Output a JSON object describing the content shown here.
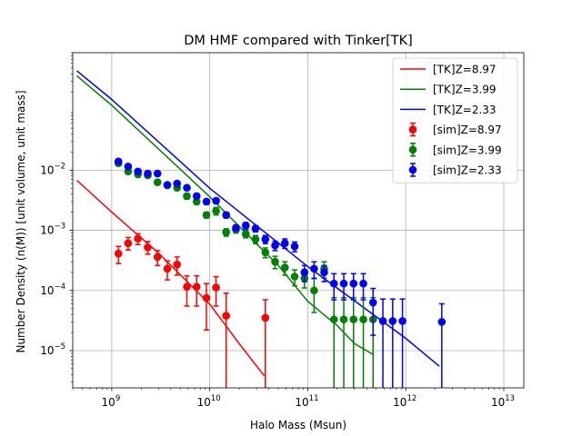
{
  "chart_data": {
    "type": "scatter",
    "title": "DM HMF compared with Tinker[TK]",
    "xlabel": "Halo Mass (Msun)",
    "ylabel": "Number Density (n(M)) [unit volume, unit mass]",
    "xscale": "log",
    "yscale": "log",
    "xlim": [
      400000000.0,
      16000000000000.0
    ],
    "ylim": [
      2.4e-06,
      0.9
    ],
    "grid": true,
    "legend_position": "top-right",
    "x_ticks": [
      {
        "base": "10",
        "exp": "9",
        "value": 1000000000.0
      },
      {
        "base": "10",
        "exp": "10",
        "value": 10000000000.0
      },
      {
        "base": "10",
        "exp": "11",
        "value": 100000000000.0
      },
      {
        "base": "10",
        "exp": "12",
        "value": 1000000000000.0
      },
      {
        "base": "10",
        "exp": "13",
        "value": 10000000000000.0
      }
    ],
    "y_ticks": [
      {
        "base": "10",
        "exp": "−5",
        "value": 1e-05
      },
      {
        "base": "10",
        "exp": "−4",
        "value": 0.0001
      },
      {
        "base": "10",
        "exp": "−3",
        "value": 0.001
      },
      {
        "base": "10",
        "exp": "−2",
        "value": 0.01
      }
    ],
    "lines": [
      {
        "name": "[TK]Z=8.97",
        "color": "#ff0000",
        "x": [
          440000000.0,
          1000000000.0,
          3000000000.0,
          10000000000.0,
          20000000000.0,
          36000000000.0
        ],
        "y": [
          0.0068,
          0.002,
          0.00042,
          5.9e-05,
          1.3e-05,
          3.8e-06
        ]
      },
      {
        "name": "[TK]Z=3.99",
        "color": "#008000",
        "x": [
          440000000.0,
          1000000000.0,
          10000000000.0,
          50000000000.0,
          100000000000.0,
          200000000000.0,
          300000000000.0,
          470000000000.0
        ],
        "y": [
          0.37,
          0.12,
          0.0036,
          0.00026,
          6.6e-05,
          2.6e-05,
          1.3e-05,
          8.5e-06
        ]
      },
      {
        "name": "[TK]Z=2.33",
        "color": "#0000ff",
        "x": [
          440000000.0,
          1000000000.0,
          10000000000.0,
          100000000000.0,
          1000000000000.0,
          2200000000000.0
        ],
        "y": [
          0.45,
          0.15,
          0.005,
          0.00025,
          1.6e-05,
          5.5e-06
        ]
      }
    ],
    "points": [
      {
        "name": "[sim]Z=8.97",
        "color": "#ff0000",
        "x": [
          1170000000.0,
          1470000000.0,
          1850000000.0,
          2330000000.0,
          2930000000.0,
          3690000000.0,
          4640000000.0,
          5840000000.0,
          7350000000.0,
          9250000000.0,
          11600000000.0,
          14700000000.0,
          36900000000.0
        ],
        "y": [
          0.00041,
          0.00061,
          0.00073,
          0.00052,
          0.00036,
          0.00023,
          0.00027,
          0.000115,
          0.000115,
          7.5e-05,
          0.000112,
          3.8e-05,
          3.5e-05
        ],
        "lo": [
          0.00028,
          0.00047,
          0.00058,
          0.0004,
          0.00026,
          0.00015,
          0.00018,
          5.5e-05,
          5.5e-05,
          2.2e-05,
          5.5e-05,
          1e-08,
          1e-08
        ],
        "hi": [
          0.00054,
          0.00076,
          0.00088,
          0.00065,
          0.00046,
          0.00031,
          0.00036,
          0.000175,
          0.000175,
          0.00013,
          0.00017,
          9e-05,
          7e-05
        ]
      },
      {
        "name": "[sim]Z=3.99",
        "color": "#008000",
        "x": [
          1170000000.0,
          1470000000.0,
          1850000000.0,
          2330000000.0,
          2930000000.0,
          3690000000.0,
          4640000000.0,
          5840000000.0,
          7350000000.0,
          9250000000.0,
          11600000000.0,
          14700000000.0,
          18500000000.0,
          23300000000.0,
          29300000000.0,
          36900000000.0,
          46400000000.0,
          58400000000.0,
          73500000000.0,
          92500000000.0,
          116000000000.0,
          147000000000.0,
          185000000000.0,
          233000000000.0,
          293000000000.0,
          369000000000.0,
          464000000000.0
        ],
        "y": [
          0.013,
          0.0095,
          0.0085,
          0.0082,
          0.0063,
          0.0056,
          0.0051,
          0.0037,
          0.003,
          0.0018,
          0.0021,
          0.00093,
          0.00103,
          0.00087,
          0.00071,
          0.00043,
          0.0003,
          0.00024,
          0.00017,
          0.00016,
          0.0001,
          0.00023,
          3.3e-05,
          3.3e-05,
          3.3e-05,
          3.3e-05,
          3.3e-05
        ],
        "lo": [
          0.012,
          0.0088,
          0.0078,
          0.0075,
          0.0058,
          0.0051,
          0.0046,
          0.0033,
          0.0027,
          0.0016,
          0.0018,
          0.0008,
          0.0009,
          0.00075,
          0.0006,
          0.00035,
          0.00023,
          0.00018,
          0.00012,
          0.00011,
          4.3e-05,
          0.00016,
          1e-08,
          1e-08,
          1e-08,
          1e-08,
          1e-08
        ],
        "hi": [
          0.014,
          0.0102,
          0.0092,
          0.0089,
          0.0068,
          0.0061,
          0.0056,
          0.0041,
          0.0033,
          0.002,
          0.0024,
          0.00106,
          0.00116,
          0.00099,
          0.00082,
          0.00051,
          0.00037,
          0.0003,
          0.00022,
          0.00021,
          0.000157,
          0.0003,
          7.6e-05,
          7.6e-05,
          7.6e-05,
          7.6e-05,
          7.6e-05
        ]
      },
      {
        "name": "[sim]Z=2.33",
        "color": "#0000ff",
        "x": [
          1170000000.0,
          1470000000.0,
          1850000000.0,
          2330000000.0,
          2930000000.0,
          3690000000.0,
          4640000000.0,
          5840000000.0,
          7350000000.0,
          9250000000.0,
          11600000000.0,
          14700000000.0,
          18500000000.0,
          23300000000.0,
          29300000000.0,
          36900000000.0,
          46400000000.0,
          58400000000.0,
          73500000000.0,
          92500000000.0,
          116000000000.0,
          147000000000.0,
          185000000000.0,
          233000000000.0,
          293000000000.0,
          369000000000.0,
          464000000000.0,
          584000000000.0,
          735000000000.0,
          925000000000.0,
          2330000000000.0
        ],
        "y": [
          0.014,
          0.0115,
          0.0095,
          0.0088,
          0.0088,
          0.0057,
          0.006,
          0.0051,
          0.0037,
          0.003,
          0.0031,
          0.0018,
          0.0011,
          0.0012,
          0.00107,
          0.00071,
          0.00056,
          0.00061,
          0.00054,
          0.0002,
          0.00023,
          0.0002,
          0.00013,
          0.00013,
          0.00013,
          0.00013,
          6.3e-05,
          3.1e-05,
          3.1e-05,
          3.1e-05,
          3e-05
        ],
        "lo": [
          0.013,
          0.0107,
          0.0088,
          0.0081,
          0.0081,
          0.0052,
          0.0055,
          0.0046,
          0.0033,
          0.0027,
          0.0028,
          0.0016,
          0.00097,
          0.00105,
          0.00094,
          0.0006,
          0.00046,
          0.0005,
          0.00044,
          0.00014,
          0.00016,
          0.00014,
          7e-05,
          7e-05,
          7e-05,
          7e-05,
          1.8e-05,
          1e-08,
          1e-08,
          1e-08,
          1e-08
        ],
        "hi": [
          0.015,
          0.0123,
          0.0102,
          0.0095,
          0.0095,
          0.0062,
          0.0065,
          0.0056,
          0.0041,
          0.0033,
          0.0034,
          0.002,
          0.00123,
          0.00135,
          0.0012,
          0.00082,
          0.00066,
          0.00072,
          0.00064,
          0.00026,
          0.0003,
          0.00026,
          0.00019,
          0.00019,
          0.00019,
          0.00019,
          0.000108,
          7.2e-05,
          7.2e-05,
          7.2e-05,
          6e-05
        ]
      }
    ]
  }
}
